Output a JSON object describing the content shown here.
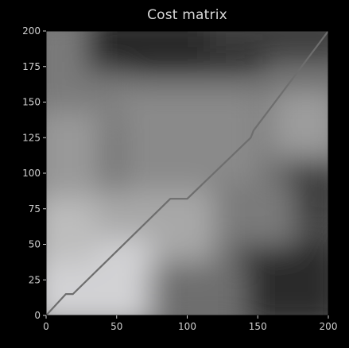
{
  "chart_data": {
    "type": "heatmap",
    "title": "Cost matrix",
    "xlabel": "",
    "ylabel": "",
    "xlim": [
      0,
      200
    ],
    "ylim": [
      0,
      200
    ],
    "x_ticks": [
      0,
      50,
      100,
      150,
      200
    ],
    "y_ticks": [
      0,
      25,
      50,
      75,
      100,
      125,
      150,
      175,
      200
    ],
    "x_tick_labels": [
      "0",
      "50",
      "100",
      "150",
      "200"
    ],
    "y_tick_labels": [
      "0",
      "25",
      "50",
      "75",
      "100",
      "125",
      "150",
      "175",
      "200"
    ],
    "colormap": "gray",
    "grid": false,
    "series": [
      {
        "type": "line",
        "x": [
          0,
          14,
          19,
          88,
          100,
          145,
          147,
          166,
          200
        ],
        "y": [
          0,
          15,
          15,
          82,
          82,
          125,
          130,
          155,
          200
        ]
      }
    ],
    "colors": {
      "background": "#000000",
      "path": "#6e6e6e",
      "text": "#cfcfcf"
    }
  }
}
